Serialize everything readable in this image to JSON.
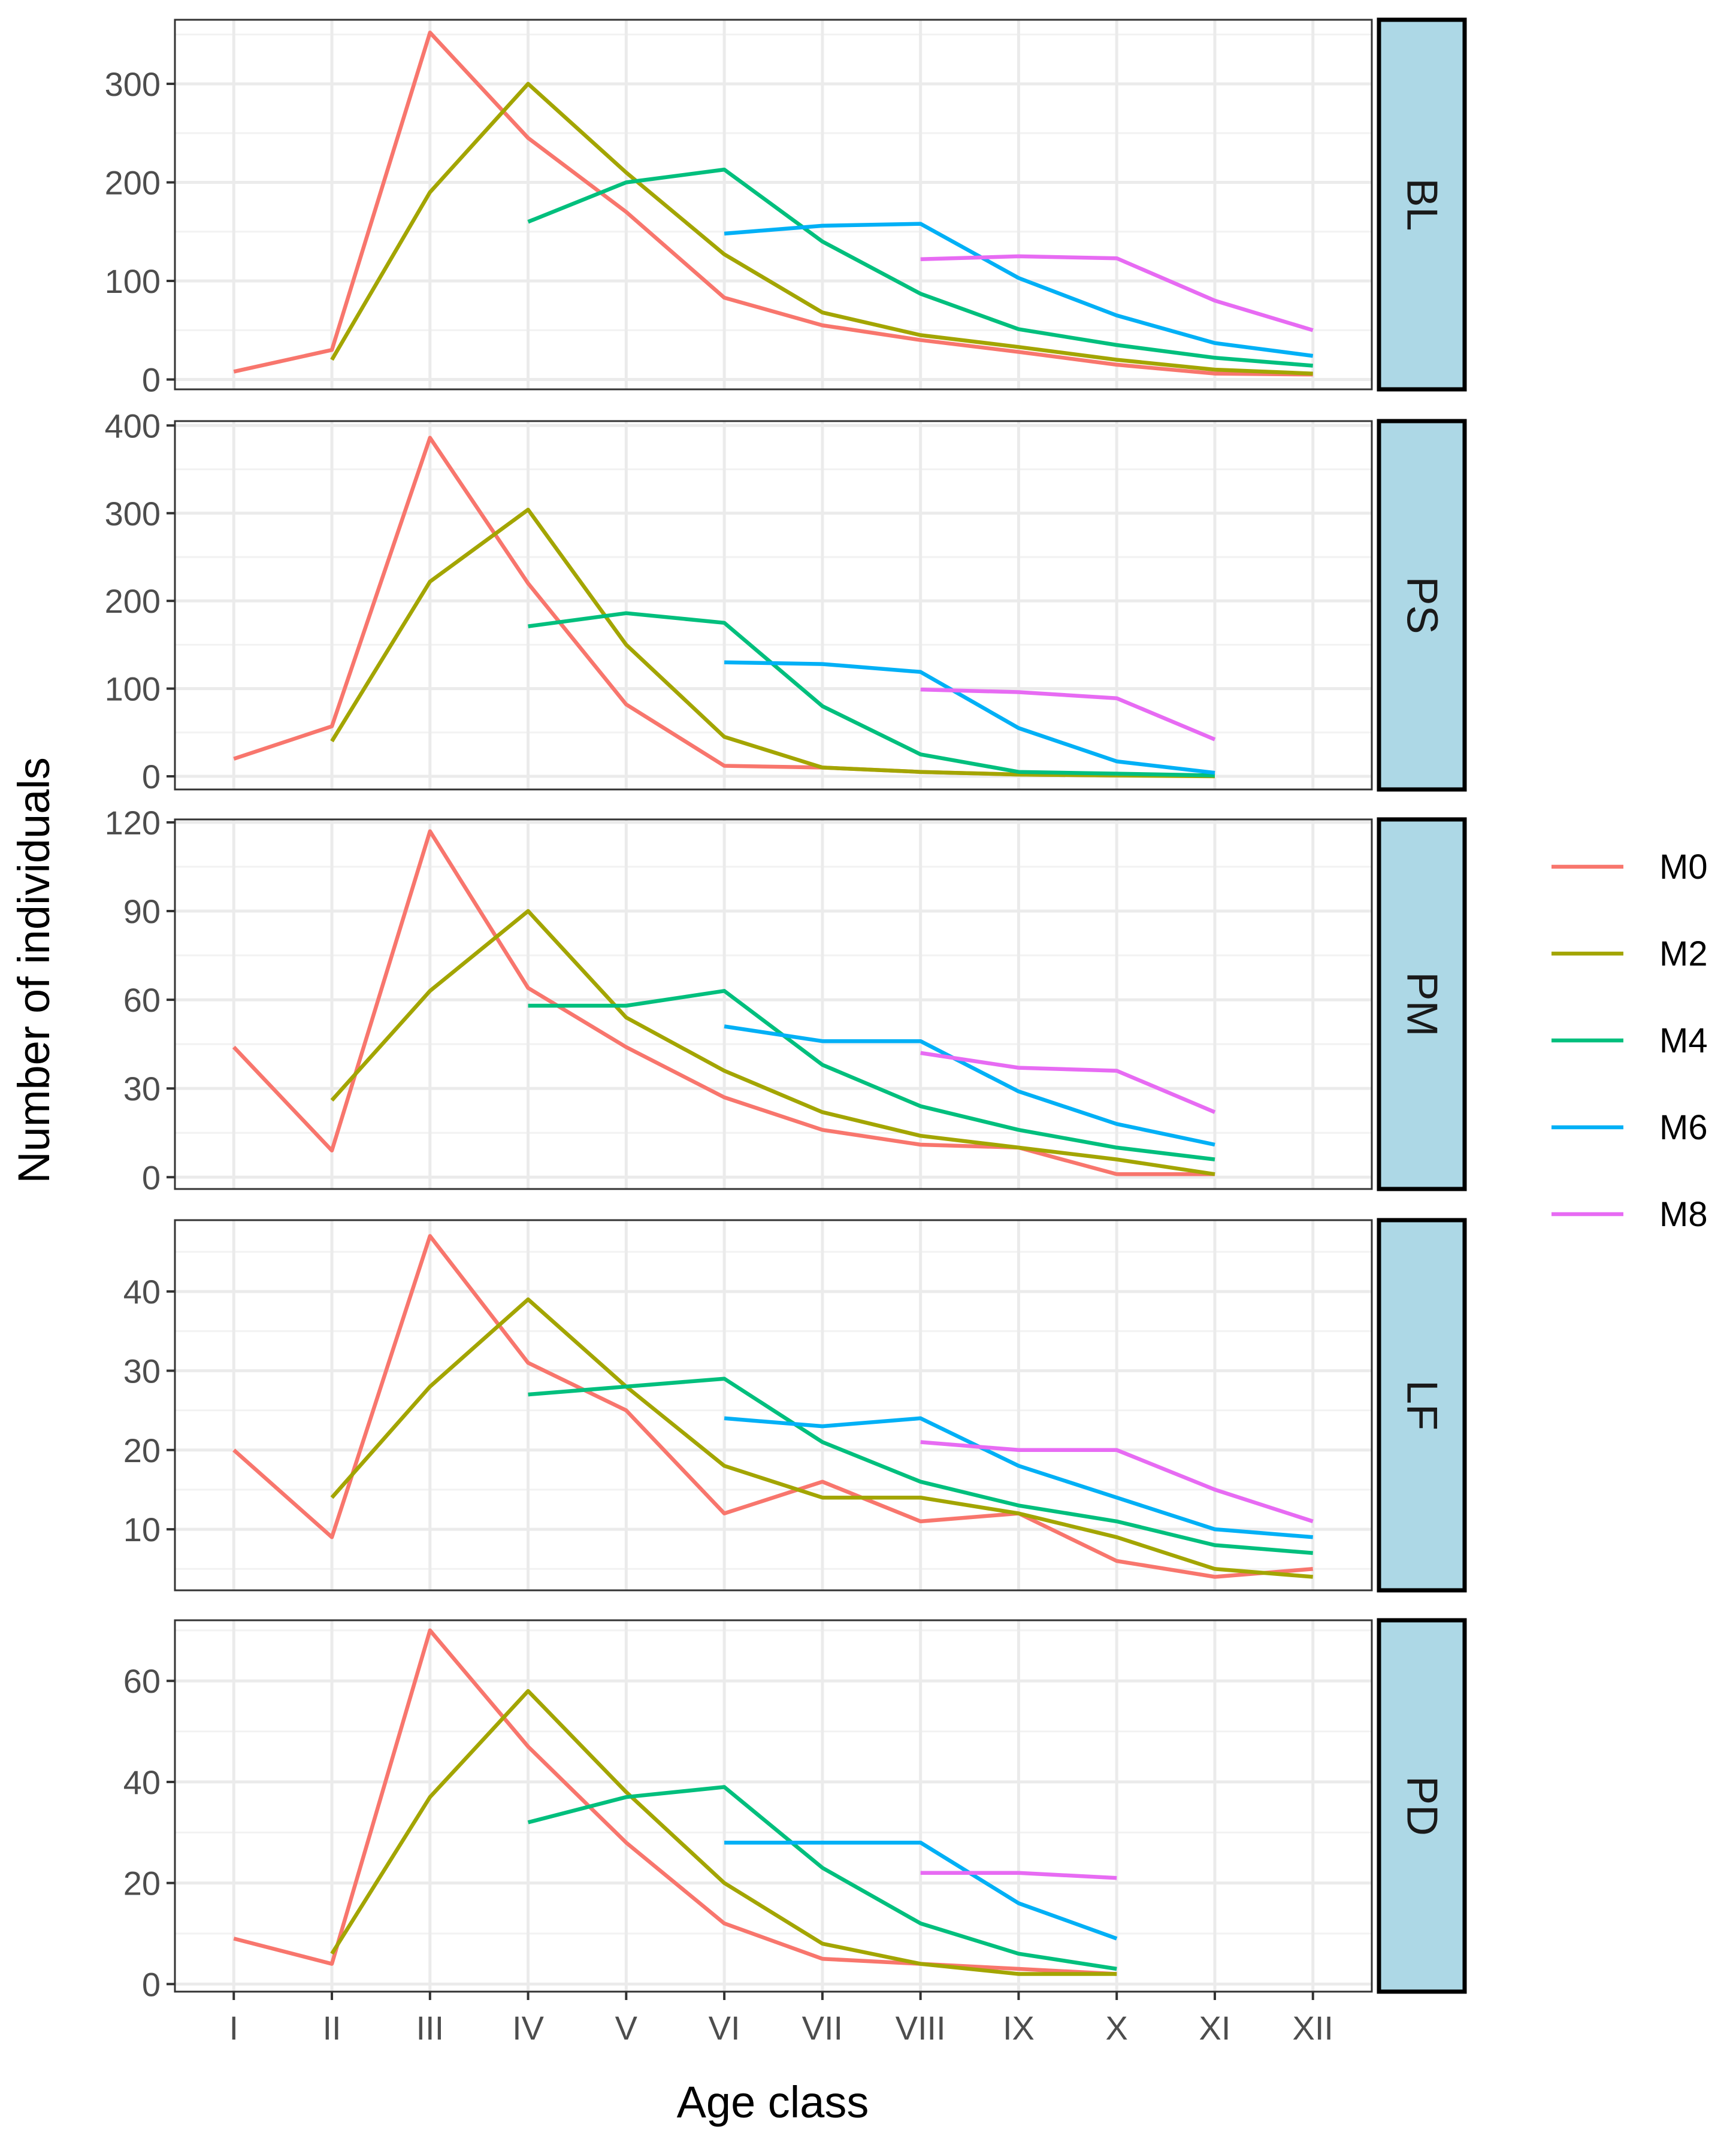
{
  "chart_data": {
    "type": "line",
    "xlabel": "Age class",
    "ylabel": "Number of individuals",
    "categories": [
      "I",
      "II",
      "III",
      "IV",
      "V",
      "VI",
      "VII",
      "VIII",
      "IX",
      "X",
      "XI",
      "XII"
    ],
    "legend": {
      "position": "right",
      "entries": [
        {
          "name": "M0",
          "color": "#F8766D"
        },
        {
          "name": "M2",
          "color": "#A3A500"
        },
        {
          "name": "M4",
          "color": "#00BF7D"
        },
        {
          "name": "M6",
          "color": "#00B0F6"
        },
        {
          "name": "M8",
          "color": "#E76BF3"
        }
      ]
    },
    "grid": true,
    "panels": [
      {
        "strip": "BL",
        "ylim": [
          -10,
          365
        ],
        "yticks": [
          0,
          100,
          200,
          300
        ],
        "ytick_labels": [
          "0",
          "100",
          "200",
          "300"
        ],
        "series": [
          {
            "name": "M0",
            "values": [
              8,
              30,
              352,
              245,
              170,
              83,
              55,
              40,
              28,
              15,
              6,
              5
            ]
          },
          {
            "name": "M2",
            "values": [
              null,
              20,
              190,
              300,
              210,
              127,
              68,
              45,
              33,
              20,
              10,
              6
            ]
          },
          {
            "name": "M4",
            "values": [
              null,
              null,
              null,
              160,
              200,
              213,
              140,
              87,
              51,
              35,
              22,
              14
            ]
          },
          {
            "name": "M6",
            "values": [
              null,
              null,
              null,
              null,
              null,
              148,
              156,
              158,
              103,
              65,
              37,
              24
            ]
          },
          {
            "name": "M8",
            "values": [
              null,
              null,
              null,
              null,
              null,
              null,
              null,
              122,
              125,
              123,
              80,
              50
            ]
          }
        ]
      },
      {
        "strip": "PS",
        "ylim": [
          -15,
          405
        ],
        "yticks": [
          0,
          100,
          200,
          300,
          400
        ],
        "ytick_labels": [
          "0",
          "100",
          "200",
          "300",
          "400"
        ],
        "series": [
          {
            "name": "M0",
            "values": [
              20,
              57,
              386,
              220,
              82,
              12,
              10,
              5,
              2,
              1,
              1,
              null
            ]
          },
          {
            "name": "M2",
            "values": [
              null,
              40,
              222,
              304,
              150,
              45,
              10,
              5,
              2,
              1,
              0,
              null
            ]
          },
          {
            "name": "M4",
            "values": [
              null,
              null,
              null,
              171,
              186,
              175,
              80,
              25,
              5,
              3,
              1,
              null
            ]
          },
          {
            "name": "M6",
            "values": [
              null,
              null,
              null,
              null,
              null,
              130,
              128,
              119,
              55,
              17,
              4,
              null
            ]
          },
          {
            "name": "M8",
            "values": [
              null,
              null,
              null,
              null,
              null,
              null,
              null,
              99,
              96,
              89,
              42,
              null
            ]
          }
        ]
      },
      {
        "strip": "PM",
        "ylim": [
          -4,
          121
        ],
        "yticks": [
          0,
          30,
          60,
          90,
          120
        ],
        "ytick_labels": [
          "0",
          "30",
          "60",
          "90",
          "120"
        ],
        "series": [
          {
            "name": "M0",
            "values": [
              44,
              9,
              117,
              64,
              44,
              27,
              16,
              11,
              10,
              1,
              1,
              null
            ]
          },
          {
            "name": "M2",
            "values": [
              null,
              26,
              63,
              90,
              54,
              36,
              22,
              14,
              10,
              6,
              1,
              null
            ]
          },
          {
            "name": "M4",
            "values": [
              null,
              null,
              null,
              58,
              58,
              63,
              38,
              24,
              16,
              10,
              6,
              null
            ]
          },
          {
            "name": "M6",
            "values": [
              null,
              null,
              null,
              null,
              null,
              51,
              46,
              46,
              29,
              18,
              11,
              null
            ]
          },
          {
            "name": "M8",
            "values": [
              null,
              null,
              null,
              null,
              null,
              null,
              null,
              42,
              37,
              36,
              22,
              null
            ]
          }
        ]
      },
      {
        "strip": "LF",
        "ylim": [
          2.3,
          49
        ],
        "yticks": [
          10,
          20,
          30,
          40
        ],
        "ytick_labels": [
          "10",
          "20",
          "30",
          "40"
        ],
        "series": [
          {
            "name": "M0",
            "values": [
              20,
              9,
              47,
              31,
              25,
              12,
              16,
              11,
              12,
              6,
              4,
              5
            ]
          },
          {
            "name": "M2",
            "values": [
              null,
              14,
              28,
              39,
              28,
              18,
              14,
              14,
              12,
              9,
              5,
              4
            ]
          },
          {
            "name": "M4",
            "values": [
              null,
              null,
              null,
              27,
              28,
              29,
              21,
              16,
              13,
              11,
              8,
              7
            ]
          },
          {
            "name": "M6",
            "values": [
              null,
              null,
              null,
              null,
              null,
              24,
              23,
              24,
              18,
              14,
              10,
              9
            ]
          },
          {
            "name": "M8",
            "values": [
              null,
              null,
              null,
              null,
              null,
              null,
              null,
              21,
              20,
              20,
              15,
              11
            ]
          }
        ]
      },
      {
        "strip": "PD",
        "ylim": [
          -1.5,
          72
        ],
        "yticks": [
          0,
          20,
          40,
          60
        ],
        "ytick_labels": [
          "0",
          "20",
          "40",
          "60"
        ],
        "series": [
          {
            "name": "M0",
            "values": [
              9,
              4,
              70,
              47,
              28,
              12,
              5,
              4,
              3,
              2,
              null,
              null
            ]
          },
          {
            "name": "M2",
            "values": [
              null,
              6,
              37,
              58,
              38,
              20,
              8,
              4,
              2,
              2,
              null,
              null
            ]
          },
          {
            "name": "M4",
            "values": [
              null,
              null,
              null,
              32,
              37,
              39,
              23,
              12,
              6,
              3,
              null,
              null
            ]
          },
          {
            "name": "M6",
            "values": [
              null,
              null,
              null,
              null,
              null,
              28,
              28,
              28,
              16,
              9,
              null,
              null
            ]
          },
          {
            "name": "M8",
            "values": [
              null,
              null,
              null,
              null,
              null,
              null,
              null,
              22,
              22,
              21,
              null,
              null
            ]
          }
        ]
      }
    ]
  }
}
